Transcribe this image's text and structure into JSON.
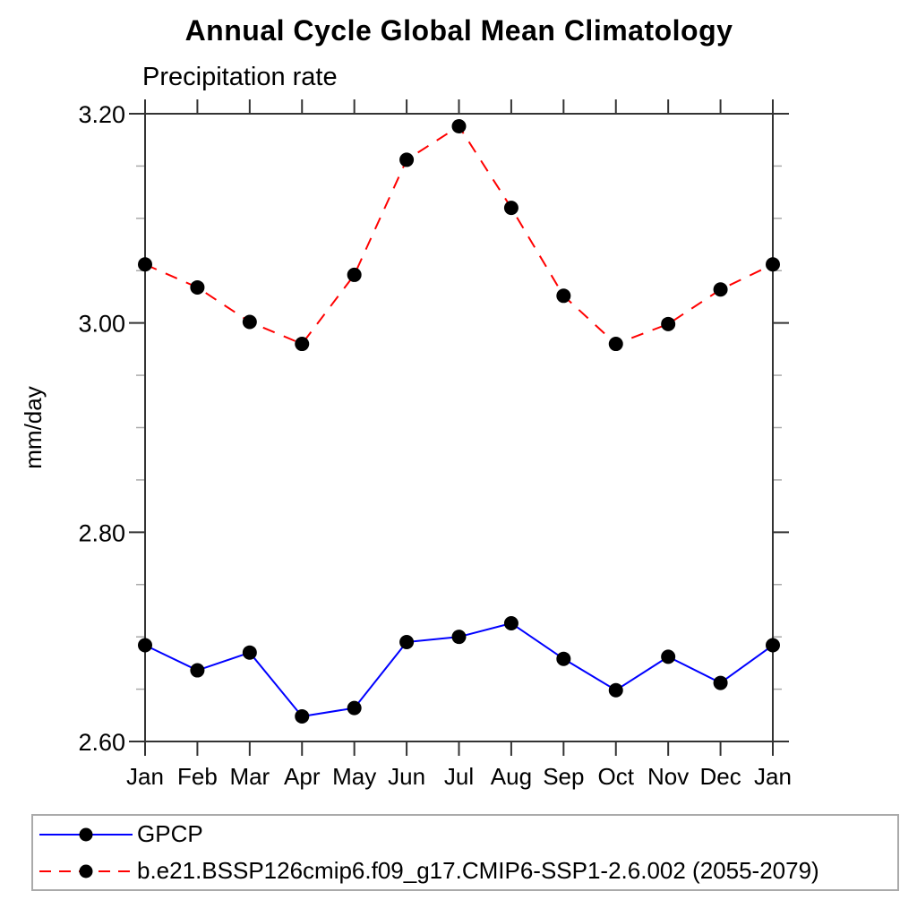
{
  "header": {
    "title": "Annual Cycle Global Mean Climatology",
    "subtitle": "Precipitation rate"
  },
  "chart_data": {
    "type": "line",
    "title": "Annual Cycle Global Mean Climatology",
    "subtitle": "Precipitation rate",
    "xlabel": "",
    "ylabel": "mm/day",
    "categories": [
      "Jan",
      "Feb",
      "Mar",
      "Apr",
      "May",
      "Jun",
      "Jul",
      "Aug",
      "Sep",
      "Oct",
      "Nov",
      "Dec",
      "Jan"
    ],
    "ylim": [
      2.6,
      3.2
    ],
    "ytick_labels": [
      "2.60",
      "2.80",
      "3.00",
      "3.20"
    ],
    "ytick_major_values": [
      2.6,
      2.8,
      3.0,
      3.2
    ],
    "ytick_minor_step": 0.05,
    "grid": false,
    "legend_position": "bottom-outside",
    "series": [
      {
        "name": "GPCP",
        "color": "#0000ff",
        "line_style": "solid",
        "marker": "circle",
        "marker_color": "#000000",
        "values": [
          2.692,
          2.668,
          2.685,
          2.624,
          2.632,
          2.695,
          2.7,
          2.713,
          2.679,
          2.649,
          2.681,
          2.656,
          2.692
        ]
      },
      {
        "name": "b.e21.BSSP126cmip6.f09_g17.CMIP6-SSP1-2.6.002 (2055-2079)",
        "color": "#ff0000",
        "line_style": "dashed",
        "marker": "circle",
        "marker_color": "#000000",
        "values": [
          3.056,
          3.034,
          3.001,
          2.98,
          3.046,
          3.156,
          3.188,
          3.11,
          3.026,
          2.98,
          2.999,
          3.032,
          3.056
        ]
      }
    ]
  },
  "legend": {
    "items": [
      {
        "label": "GPCP"
      },
      {
        "label": "b.e21.BSSP126cmip6.f09_g17.CMIP6-SSP1-2.6.002 (2055-2079)"
      }
    ]
  },
  "colors": {
    "axis": "#333333",
    "minor_tick": "#aaaaaa",
    "text": "#000000",
    "gpcp_line": "#0000ff",
    "model_line": "#ff0000",
    "marker": "#000000",
    "legend_border": "#aaaaaa"
  }
}
